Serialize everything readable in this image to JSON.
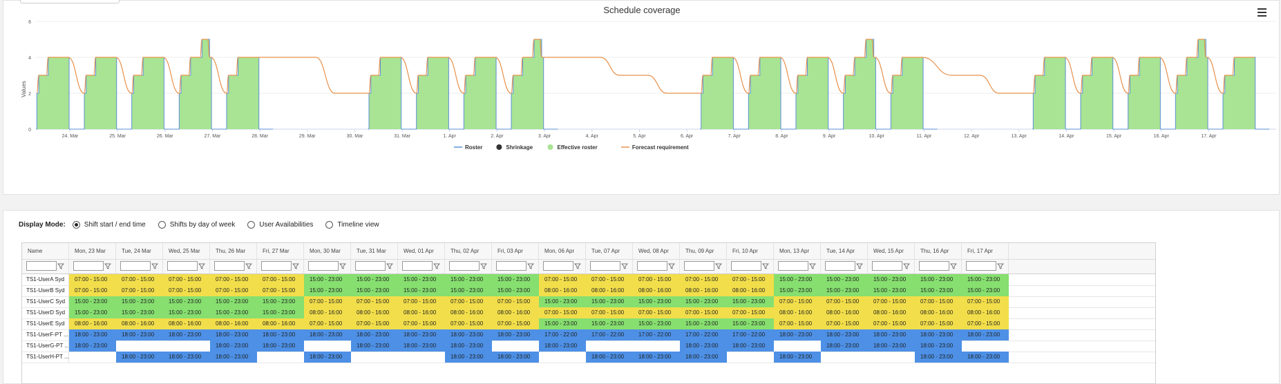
{
  "chart_data": {
    "type": "area",
    "title": "Schedule coverage",
    "ylabel": "Values",
    "ylim": [
      0,
      6
    ],
    "yticks": [
      0,
      2,
      4,
      6
    ],
    "x_tick_labels": [
      "24. Mar",
      "25. Mar",
      "26. Mar",
      "27. Mar",
      "28. Mar",
      "29. Mar",
      "30. Mar",
      "31. Mar",
      "1. Apr",
      "2. Apr",
      "3. Apr",
      "4. Apr",
      "5. Apr",
      "6. Apr",
      "7. Apr",
      "8. Apr",
      "9. Apr",
      "10. Apr",
      "11. Apr",
      "12. Apr",
      "13. Apr",
      "14. Apr",
      "15. Apr",
      "16. Apr",
      "17. Apr"
    ],
    "legend": [
      "Roster",
      "Shrinkage",
      "Effective roster",
      "Forecast requirement"
    ],
    "legend_position": "bottom-center",
    "colors": {
      "roster": "#5b8fd6",
      "shrinkage": "#333333",
      "effective": "#a8e493",
      "forecast": "#e8904a"
    },
    "daily_peak": [
      4,
      4,
      4,
      5,
      4,
      0,
      0,
      4,
      4,
      4,
      5,
      0,
      0,
      0,
      4,
      4,
      4,
      5,
      4,
      0,
      0,
      4,
      4,
      4,
      5,
      4
    ],
    "forecast_peak": [
      4,
      4,
      4,
      5,
      4,
      4,
      2,
      4,
      4,
      4,
      5,
      4,
      3,
      2,
      4,
      4,
      4,
      5,
      3,
      3,
      2,
      4,
      4,
      4,
      5,
      4
    ]
  },
  "display_mode": {
    "label": "Display Mode:",
    "options": [
      "Shift start / end time",
      "Shifts by day of week",
      "User Availabilities",
      "Timeline view"
    ],
    "selected": 0
  },
  "table": {
    "name_header": "Name",
    "days": [
      "Mon, 23 Mar",
      "Tue, 24 Mar",
      "Wed, 25 Mar",
      "Thu, 26 Mar",
      "Fri, 27 Mar",
      "Mon, 30 Mar",
      "Tue, 31 Mar",
      "Wed, 01 Apr",
      "Thu, 02 Apr",
      "Fri, 03 Apr",
      "Mon, 06 Apr",
      "Tue, 07 Apr",
      "Wed, 08 Apr",
      "Thu, 09 Apr",
      "Fri, 10 Apr",
      "Mon, 13 Apr",
      "Tue, 14 Apr",
      "Wed, 15 Apr",
      "Thu, 16 Apr",
      "Fri, 17 Apr"
    ],
    "rows": [
      {
        "name": "TS1-UserA Syd",
        "cells": [
          [
            "07:00 - 15:00",
            "y"
          ],
          [
            "07:00 - 15:00",
            "y"
          ],
          [
            "07:00 - 15:00",
            "y"
          ],
          [
            "07:00 - 15:00",
            "y"
          ],
          [
            "07:00 - 15:00",
            "y"
          ],
          [
            "15:00 - 23:00",
            "g"
          ],
          [
            "15:00 - 23:00",
            "g"
          ],
          [
            "15:00 - 23:00",
            "g"
          ],
          [
            "15:00 - 23:00",
            "g"
          ],
          [
            "15:00 - 23:00",
            "g"
          ],
          [
            "07:00 - 15:00",
            "y"
          ],
          [
            "07:00 - 15:00",
            "y"
          ],
          [
            "07:00 - 15:00",
            "y"
          ],
          [
            "07:00 - 15:00",
            "y"
          ],
          [
            "07:00 - 15:00",
            "y"
          ],
          [
            "15:00 - 23:00",
            "g"
          ],
          [
            "15:00 - 23:00",
            "g"
          ],
          [
            "15:00 - 23:00",
            "g"
          ],
          [
            "15:00 - 23:00",
            "g"
          ],
          [
            "15:00 - 23:00",
            "g"
          ]
        ]
      },
      {
        "name": "TS1-UserB Syd",
        "cells": [
          [
            "07:00 - 15:00",
            "y"
          ],
          [
            "07:00 - 15:00",
            "y"
          ],
          [
            "07:00 - 15:00",
            "y"
          ],
          [
            "07:00 - 15:00",
            "y"
          ],
          [
            "07:00 - 15:00",
            "y"
          ],
          [
            "15:00 - 23:00",
            "g"
          ],
          [
            "15:00 - 23:00",
            "g"
          ],
          [
            "15:00 - 23:00",
            "g"
          ],
          [
            "15:00 - 23:00",
            "g"
          ],
          [
            "15:00 - 23:00",
            "g"
          ],
          [
            "08:00 - 16:00",
            "y"
          ],
          [
            "08:00 - 16:00",
            "y"
          ],
          [
            "08:00 - 16:00",
            "y"
          ],
          [
            "08:00 - 16:00",
            "y"
          ],
          [
            "08:00 - 16:00",
            "y"
          ],
          [
            "15:00 - 23:00",
            "g"
          ],
          [
            "15:00 - 23:00",
            "g"
          ],
          [
            "15:00 - 23:00",
            "g"
          ],
          [
            "15:00 - 23:00",
            "g"
          ],
          [
            "15:00 - 23:00",
            "g"
          ]
        ]
      },
      {
        "name": "TS1-UserC Syd",
        "cells": [
          [
            "15:00 - 23:00",
            "g"
          ],
          [
            "15:00 - 23:00",
            "g"
          ],
          [
            "15:00 - 23:00",
            "g"
          ],
          [
            "15:00 - 23:00",
            "g"
          ],
          [
            "15:00 - 23:00",
            "g"
          ],
          [
            "07:00 - 15:00",
            "y"
          ],
          [
            "07:00 - 15:00",
            "y"
          ],
          [
            "07:00 - 15:00",
            "y"
          ],
          [
            "07:00 - 15:00",
            "y"
          ],
          [
            "07:00 - 15:00",
            "y"
          ],
          [
            "15:00 - 23:00",
            "g"
          ],
          [
            "15:00 - 23:00",
            "g"
          ],
          [
            "15:00 - 23:00",
            "g"
          ],
          [
            "15:00 - 23:00",
            "g"
          ],
          [
            "15:00 - 23:00",
            "g"
          ],
          [
            "07:00 - 15:00",
            "y"
          ],
          [
            "07:00 - 15:00",
            "y"
          ],
          [
            "07:00 - 15:00",
            "y"
          ],
          [
            "07:00 - 15:00",
            "y"
          ],
          [
            "07:00 - 15:00",
            "y"
          ]
        ]
      },
      {
        "name": "TS1-UserD Syd",
        "cells": [
          [
            "15:00 - 23:00",
            "g"
          ],
          [
            "15:00 - 23:00",
            "g"
          ],
          [
            "15:00 - 23:00",
            "g"
          ],
          [
            "15:00 - 23:00",
            "g"
          ],
          [
            "15:00 - 23:00",
            "g"
          ],
          [
            "08:00 - 16:00",
            "y"
          ],
          [
            "08:00 - 16:00",
            "y"
          ],
          [
            "08:00 - 16:00",
            "y"
          ],
          [
            "08:00 - 16:00",
            "y"
          ],
          [
            "08:00 - 16:00",
            "y"
          ],
          [
            "07:00 - 15:00",
            "y"
          ],
          [
            "07:00 - 15:00",
            "y"
          ],
          [
            "07:00 - 15:00",
            "y"
          ],
          [
            "07:00 - 15:00",
            "y"
          ],
          [
            "07:00 - 15:00",
            "y"
          ],
          [
            "08:00 - 16:00",
            "y"
          ],
          [
            "08:00 - 16:00",
            "y"
          ],
          [
            "08:00 - 16:00",
            "y"
          ],
          [
            "08:00 - 16:00",
            "y"
          ],
          [
            "08:00 - 16:00",
            "y"
          ]
        ]
      },
      {
        "name": "TS1-UserE Syd",
        "cells": [
          [
            "08:00 - 16:00",
            "y"
          ],
          [
            "08:00 - 16:00",
            "y"
          ],
          [
            "08:00 - 16:00",
            "y"
          ],
          [
            "08:00 - 16:00",
            "y"
          ],
          [
            "08:00 - 16:00",
            "y"
          ],
          [
            "07:00 - 15:00",
            "y"
          ],
          [
            "07:00 - 15:00",
            "y"
          ],
          [
            "07:00 - 15:00",
            "y"
          ],
          [
            "07:00 - 15:00",
            "y"
          ],
          [
            "07:00 - 15:00",
            "y"
          ],
          [
            "15:00 - 23:00",
            "g"
          ],
          [
            "15:00 - 23:00",
            "g"
          ],
          [
            "15:00 - 23:00",
            "g"
          ],
          [
            "15:00 - 23:00",
            "g"
          ],
          [
            "15:00 - 23:00",
            "g"
          ],
          [
            "07:00 - 15:00",
            "y"
          ],
          [
            "07:00 - 15:00",
            "y"
          ],
          [
            "07:00 - 15:00",
            "y"
          ],
          [
            "07:00 - 15:00",
            "y"
          ],
          [
            "07:00 - 15:00",
            "y"
          ]
        ]
      },
      {
        "name": "TS1-UserF-PT ...",
        "cells": [
          [
            "18:00 - 23:00",
            "b"
          ],
          [
            "18:00 - 23:00",
            "b"
          ],
          [
            "18:00 - 23:00",
            "b"
          ],
          [
            "18:00 - 23:00",
            "b"
          ],
          [
            "18:00 - 23:00",
            "b"
          ],
          [
            "18:00 - 23:00",
            "b"
          ],
          [
            "18:00 - 23:00",
            "b"
          ],
          [
            "18:00 - 23:00",
            "b"
          ],
          [
            "18:00 - 23:00",
            "b"
          ],
          [
            "18:00 - 23:00",
            "b"
          ],
          [
            "17:00 - 22:00",
            "b"
          ],
          [
            "17:00 - 22:00",
            "b"
          ],
          [
            "17:00 - 22:00",
            "b"
          ],
          [
            "17:00 - 22:00",
            "b"
          ],
          [
            "17:00 - 22:00",
            "b"
          ],
          [
            "18:00 - 23:00",
            "b"
          ],
          [
            "18:00 - 23:00",
            "b"
          ],
          [
            "18:00 - 23:00",
            "b"
          ],
          [
            "18:00 - 23:00",
            "b"
          ],
          [
            "18:00 - 23:00",
            "b"
          ]
        ]
      },
      {
        "name": "TS1-UserG-PT ...",
        "cells": [
          [
            "18:00 - 23:00",
            "b"
          ],
          [
            "",
            ""
          ],
          [
            "",
            ""
          ],
          [
            "18:00 - 23:00",
            "b"
          ],
          [
            "18:00 - 23:00",
            "b"
          ],
          [
            "",
            ""
          ],
          [
            "18:00 - 23:00",
            "b"
          ],
          [
            "18:00 - 23:00",
            "b"
          ],
          [
            "18:00 - 23:00",
            "b"
          ],
          [
            "",
            ""
          ],
          [
            "18:00 - 23:00",
            "b"
          ],
          [
            "",
            ""
          ],
          [
            "",
            ""
          ],
          [
            "18:00 - 23:00",
            "b"
          ],
          [
            "18:00 - 23:00",
            "b"
          ],
          [
            "",
            ""
          ],
          [
            "18:00 - 23:00",
            "b"
          ],
          [
            "18:00 - 23:00",
            "b"
          ],
          [
            "18:00 - 23:00",
            "b"
          ],
          [
            "",
            ""
          ]
        ]
      },
      {
        "name": "TS1-UserH-PT ...",
        "cells": [
          [
            "",
            ""
          ],
          [
            "18:00 - 23:00",
            "b"
          ],
          [
            "18:00 - 23:00",
            "b"
          ],
          [
            "18:00 - 23:00",
            "b"
          ],
          [
            "",
            ""
          ],
          [
            "18:00 - 23:00",
            "b"
          ],
          [
            "",
            ""
          ],
          [
            "",
            ""
          ],
          [
            "18:00 - 23:00",
            "b"
          ],
          [
            "18:00 - 23:00",
            "b"
          ],
          [
            "",
            ""
          ],
          [
            "18:00 - 23:00",
            "b"
          ],
          [
            "18:00 - 23:00",
            "b"
          ],
          [
            "18:00 - 23:00",
            "b"
          ],
          [
            "",
            ""
          ],
          [
            "18:00 - 23:00",
            "b"
          ],
          [
            "",
            ""
          ],
          [
            "",
            ""
          ],
          [
            "18:00 - 23:00",
            "b"
          ],
          [
            "18:00 - 23:00",
            "b"
          ]
        ]
      }
    ]
  }
}
